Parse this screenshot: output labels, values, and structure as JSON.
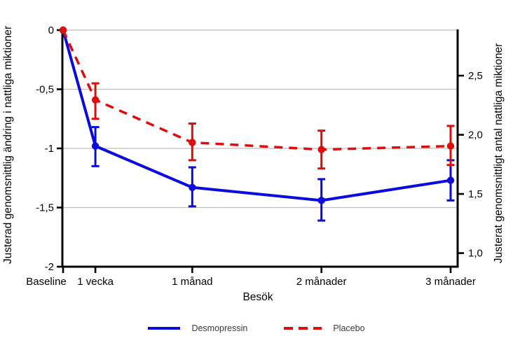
{
  "page": {
    "background_color": "#ffffff"
  },
  "chart_data": {
    "type": "line",
    "title": "",
    "xlabel": "Besök",
    "ylabel_left": "Justerad genomsnittlig ändring i nattliga miktioner",
    "ylabel_right": "Justerat genomsnittligt antal nattliga miktioner",
    "categories": [
      "Baseline",
      "1 vecka",
      "1 månad",
      "2 månader",
      "3 månader"
    ],
    "x_days": [
      0,
      7,
      28,
      56,
      84
    ],
    "left_axis": {
      "ticks": [
        0,
        -0.5,
        -1,
        -1.5,
        -2
      ],
      "tick_labels": [
        "0",
        "-0,5",
        "-1",
        "-1,5",
        "-2"
      ],
      "range": [
        0,
        -2
      ]
    },
    "right_axis": {
      "ticks": [
        2.5,
        2.0,
        1.5,
        1.0
      ],
      "tick_labels": [
        "2,5",
        "2,0",
        "1,5",
        "1,0"
      ]
    },
    "grid": true,
    "gridline_color": "#bfbfbf",
    "axis_color": "#000000",
    "legend_position": "bottom",
    "series": [
      {
        "name": "Desmopressin",
        "color": "#0a0ae0",
        "style": "solid",
        "values": [
          0,
          -0.98,
          -1.33,
          -1.44,
          -1.27
        ],
        "ci_high": [
          null,
          -0.82,
          -1.16,
          -1.26,
          -1.1
        ],
        "ci_low": [
          null,
          -1.15,
          -1.49,
          -1.61,
          -1.44
        ]
      },
      {
        "name": "Placebo",
        "color": "#e00b0b",
        "style": "dashed",
        "values": [
          0,
          -0.59,
          -0.95,
          -1.01,
          -0.98
        ],
        "ci_high": [
          null,
          -0.45,
          -0.79,
          -0.85,
          -0.81
        ],
        "ci_low": [
          null,
          -0.75,
          -1.1,
          -1.17,
          -1.14
        ]
      }
    ]
  }
}
